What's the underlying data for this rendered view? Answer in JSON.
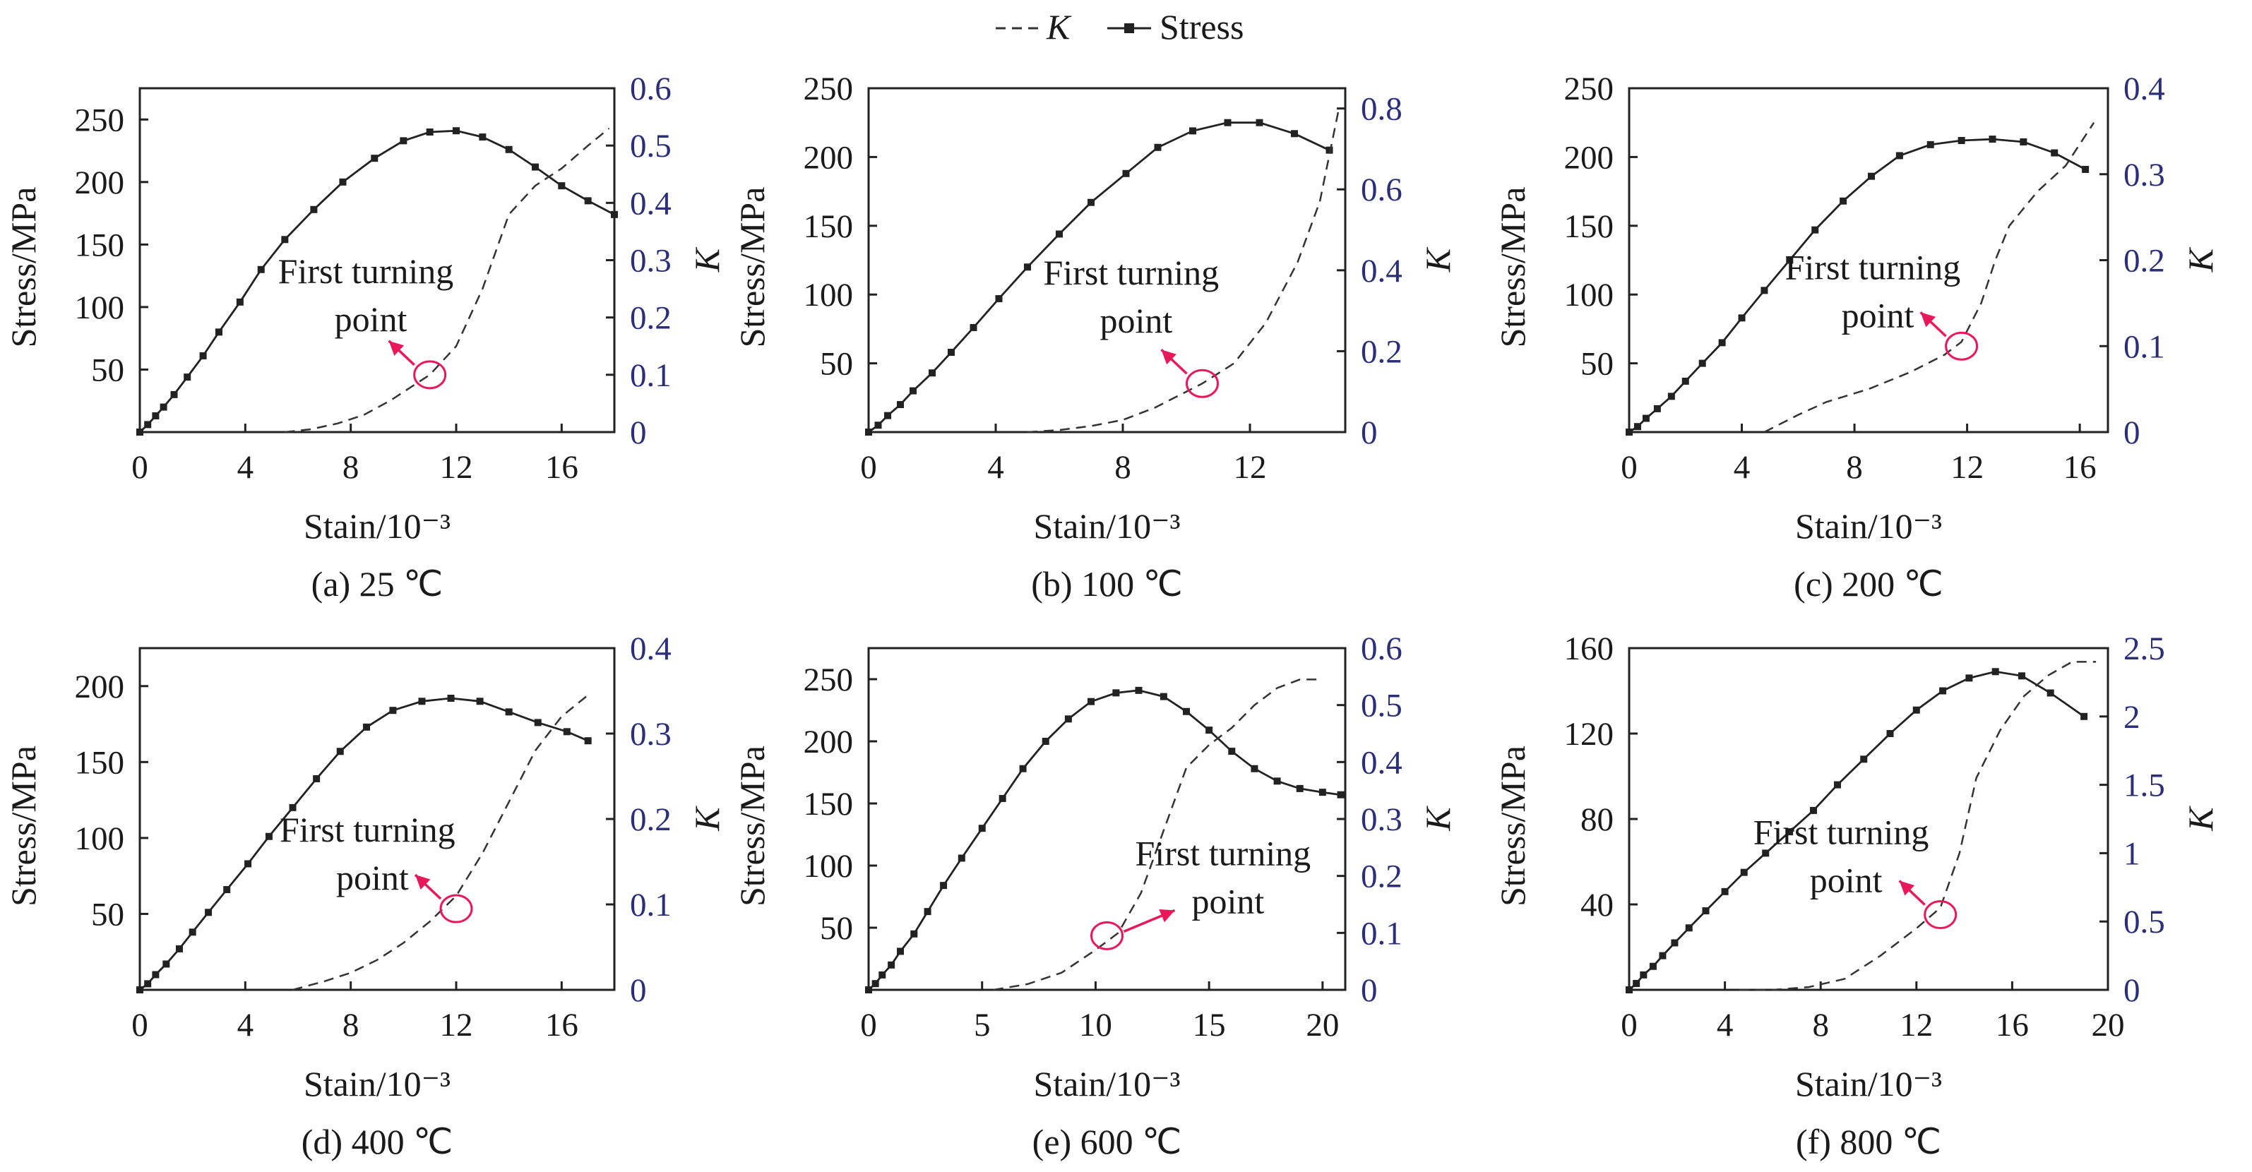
{
  "legend": {
    "k_label": "K",
    "stress_label": "Stress"
  },
  "colors": {
    "stress": "#222222",
    "k": "#333333",
    "k_axis": "#2b2f7a",
    "annotation": "#e8185a"
  },
  "chart_data": [
    {
      "type": "line",
      "caption": "(a) 25 ℃",
      "xlabel": "Stain/10⁻³",
      "ylabel": "Stress/MPa",
      "y2label": "K",
      "annotation": "First turning point",
      "xlim": [
        0,
        18
      ],
      "ylim": [
        0,
        275
      ],
      "y2lim": [
        0,
        0.6
      ],
      "xticks": [
        0,
        4,
        8,
        12,
        16
      ],
      "yticks": [
        50,
        100,
        150,
        200,
        250
      ],
      "y2ticks": [
        0,
        0.1,
        0.2,
        0.3,
        0.4,
        0.5,
        0.6
      ],
      "series": [
        {
          "name": "Stress",
          "axis": "left",
          "x": [
            0,
            0.3,
            0.6,
            0.9,
            1.3,
            1.8,
            2.4,
            3.0,
            3.8,
            4.6,
            5.5,
            6.6,
            7.7,
            8.9,
            10.0,
            11.0,
            12.0,
            13.0,
            14.0,
            15.0,
            16.0,
            17.0,
            18.0
          ],
          "y": [
            0,
            6,
            13,
            20,
            30,
            44,
            61,
            80,
            104,
            130,
            154,
            178,
            200,
            219,
            233,
            240,
            241,
            236,
            226,
            212,
            197,
            185,
            174
          ]
        },
        {
          "name": "K",
          "axis": "right",
          "x": [
            5.5,
            6.5,
            7.5,
            8.5,
            9.5,
            10.5,
            11.0,
            12.0,
            13.0,
            14.0,
            15.0,
            16.0,
            17.0,
            17.8
          ],
          "y": [
            0,
            0.005,
            0.015,
            0.03,
            0.055,
            0.085,
            0.1,
            0.15,
            0.25,
            0.38,
            0.43,
            0.46,
            0.5,
            0.53
          ]
        }
      ]
    },
    {
      "type": "line",
      "caption": "(b) 100 ℃",
      "xlabel": "Stain/10⁻³",
      "ylabel": "Stress/MPa",
      "y2label": "K",
      "annotation": "First turning point",
      "xlim": [
        0,
        15
      ],
      "ylim": [
        0,
        250
      ],
      "y2lim": [
        0,
        0.85
      ],
      "xticks": [
        0,
        4,
        8,
        12
      ],
      "yticks": [
        50,
        100,
        150,
        200,
        250
      ],
      "y2ticks": [
        0,
        0.2,
        0.4,
        0.6,
        0.8
      ],
      "series": [
        {
          "name": "Stress",
          "axis": "left",
          "x": [
            0,
            0.3,
            0.6,
            1.0,
            1.4,
            2.0,
            2.6,
            3.3,
            4.1,
            5.0,
            6.0,
            7.0,
            8.1,
            9.1,
            10.2,
            11.3,
            12.3,
            13.4,
            14.5
          ],
          "y": [
            0,
            5,
            12,
            20,
            30,
            43,
            58,
            76,
            97,
            120,
            144,
            167,
            188,
            207,
            219,
            225,
            225,
            217,
            205
          ]
        },
        {
          "name": "K",
          "axis": "right",
          "x": [
            5.0,
            6.0,
            7.0,
            8.0,
            9.0,
            10.0,
            10.5,
            11.5,
            12.5,
            13.5,
            14.2,
            14.8
          ],
          "y": [
            0,
            0.005,
            0.015,
            0.03,
            0.06,
            0.1,
            0.12,
            0.17,
            0.27,
            0.42,
            0.57,
            0.8
          ]
        }
      ]
    },
    {
      "type": "line",
      "caption": "(c) 200 ℃",
      "xlabel": "Stain/10⁻³",
      "ylabel": "Stress/MPa",
      "y2label": "K",
      "annotation": "First turning point",
      "xlim": [
        0,
        17
      ],
      "ylim": [
        0,
        250
      ],
      "y2lim": [
        0,
        0.4
      ],
      "xticks": [
        0,
        4,
        8,
        12,
        16
      ],
      "yticks": [
        50,
        100,
        150,
        200,
        250
      ],
      "y2ticks": [
        0,
        0.1,
        0.2,
        0.3,
        0.4
      ],
      "series": [
        {
          "name": "Stress",
          "axis": "left",
          "x": [
            0,
            0.3,
            0.6,
            1.0,
            1.5,
            2.0,
            2.6,
            3.3,
            4.0,
            4.8,
            5.7,
            6.6,
            7.6,
            8.6,
            9.6,
            10.7,
            11.8,
            12.9,
            14.0,
            15.1,
            16.2
          ],
          "y": [
            0,
            4,
            10,
            17,
            26,
            37,
            50,
            65,
            83,
            103,
            125,
            147,
            168,
            186,
            201,
            209,
            212,
            213,
            211,
            203,
            191
          ]
        },
        {
          "name": "K",
          "axis": "right",
          "x": [
            4.8,
            6.0,
            7.0,
            8.5,
            10.0,
            11.2,
            11.8,
            12.5,
            13.0,
            13.5,
            14.5,
            15.5,
            16.5
          ],
          "y": [
            0,
            0.02,
            0.035,
            0.05,
            0.07,
            0.09,
            0.105,
            0.15,
            0.2,
            0.24,
            0.28,
            0.31,
            0.36
          ]
        }
      ]
    },
    {
      "type": "line",
      "caption": "(d) 400 ℃",
      "xlabel": "Stain/10⁻³",
      "ylabel": "Stress/MPa",
      "y2label": "K",
      "annotation": "First turning point",
      "xlim": [
        0,
        18
      ],
      "ylim": [
        0,
        225
      ],
      "y2lim": [
        0,
        0.4
      ],
      "xticks": [
        0,
        4,
        8,
        12,
        16
      ],
      "yticks": [
        50,
        100,
        150,
        200
      ],
      "y2ticks": [
        0,
        0.1,
        0.2,
        0.3,
        0.4
      ],
      "series": [
        {
          "name": "Stress",
          "axis": "left",
          "x": [
            0,
            0.3,
            0.6,
            1.0,
            1.5,
            2.0,
            2.6,
            3.3,
            4.1,
            4.9,
            5.8,
            6.7,
            7.6,
            8.6,
            9.6,
            10.7,
            11.8,
            12.9,
            14.0,
            15.1,
            16.2,
            17.0
          ],
          "y": [
            0,
            4,
            10,
            17,
            27,
            38,
            51,
            66,
            83,
            101,
            120,
            139,
            157,
            173,
            184,
            190,
            192,
            190,
            183,
            176,
            170,
            164
          ]
        },
        {
          "name": "K",
          "axis": "right",
          "x": [
            5.8,
            7.0,
            8.0,
            9.0,
            10.0,
            11.0,
            12.0,
            13.0,
            14.0,
            15.0,
            16.0,
            17.0
          ],
          "y": [
            0,
            0.01,
            0.02,
            0.035,
            0.055,
            0.08,
            0.11,
            0.16,
            0.22,
            0.28,
            0.32,
            0.345
          ]
        }
      ]
    },
    {
      "type": "line",
      "caption": "(e) 600 ℃",
      "xlabel": "Stain/10⁻³",
      "ylabel": "Stress/MPa",
      "y2label": "K",
      "annotation": "First turning point",
      "xlim": [
        0,
        21
      ],
      "ylim": [
        0,
        275
      ],
      "y2lim": [
        0,
        0.6
      ],
      "xticks": [
        0,
        5,
        10,
        15,
        20
      ],
      "yticks": [
        50,
        100,
        150,
        200,
        250
      ],
      "y2ticks": [
        0,
        0.1,
        0.2,
        0.3,
        0.4,
        0.5,
        0.6
      ],
      "series": [
        {
          "name": "Stress",
          "axis": "left",
          "x": [
            0,
            0.3,
            0.6,
            1.0,
            1.4,
            2.0,
            2.6,
            3.3,
            4.1,
            5.0,
            5.9,
            6.8,
            7.8,
            8.8,
            9.8,
            10.9,
            11.9,
            13.0,
            14.0,
            15.0,
            16.0,
            17.0,
            18.0,
            19.0,
            20.0,
            20.8
          ],
          "y": [
            0,
            5,
            12,
            20,
            31,
            45,
            63,
            84,
            106,
            130,
            154,
            178,
            200,
            218,
            232,
            239,
            241,
            236,
            224,
            209,
            192,
            178,
            168,
            162,
            159,
            157
          ]
        },
        {
          "name": "K",
          "axis": "right",
          "x": [
            5.5,
            7.0,
            8.5,
            10.0,
            11.0,
            12.0,
            13.0,
            14.0,
            15.0,
            16.0,
            17.0,
            18.0,
            19.0,
            20.0
          ],
          "y": [
            0,
            0.01,
            0.03,
            0.07,
            0.1,
            0.17,
            0.28,
            0.39,
            0.43,
            0.46,
            0.5,
            0.53,
            0.545,
            0.545
          ]
        }
      ]
    },
    {
      "type": "line",
      "caption": "(f) 800 ℃",
      "xlabel": "Stain/10⁻³",
      "ylabel": "Stress/MPa",
      "y2label": "K",
      "annotation": "First turning point",
      "xlim": [
        0,
        20
      ],
      "ylim": [
        0,
        160
      ],
      "y2lim": [
        0,
        2.5
      ],
      "xticks": [
        0,
        4,
        8,
        12,
        16,
        20
      ],
      "yticks": [
        40,
        80,
        120,
        160
      ],
      "y2ticks": [
        0,
        0.5,
        1.0,
        1.5,
        2.0,
        2.5
      ],
      "series": [
        {
          "name": "Stress",
          "axis": "left",
          "x": [
            0,
            0.3,
            0.6,
            1.0,
            1.4,
            1.9,
            2.5,
            3.2,
            4.0,
            4.8,
            5.7,
            6.7,
            7.7,
            8.7,
            9.8,
            10.9,
            12.0,
            13.1,
            14.2,
            15.3,
            16.4,
            17.6,
            19.0
          ],
          "y": [
            0,
            3,
            7,
            11,
            16,
            22,
            29,
            37,
            46,
            55,
            64,
            74,
            84,
            96,
            108,
            120,
            131,
            140,
            146,
            149,
            147,
            139,
            128
          ]
        },
        {
          "name": "K",
          "axis": "right",
          "x": [
            4.6,
            6.0,
            7.5,
            9.0,
            10.5,
            12.0,
            13.0,
            13.8,
            14.5,
            15.5,
            16.5,
            17.5,
            18.5,
            19.5
          ],
          "y": [
            0,
            0.0,
            0.02,
            0.08,
            0.25,
            0.45,
            0.6,
            1.0,
            1.55,
            1.9,
            2.15,
            2.3,
            2.4,
            2.4
          ]
        }
      ]
    }
  ]
}
